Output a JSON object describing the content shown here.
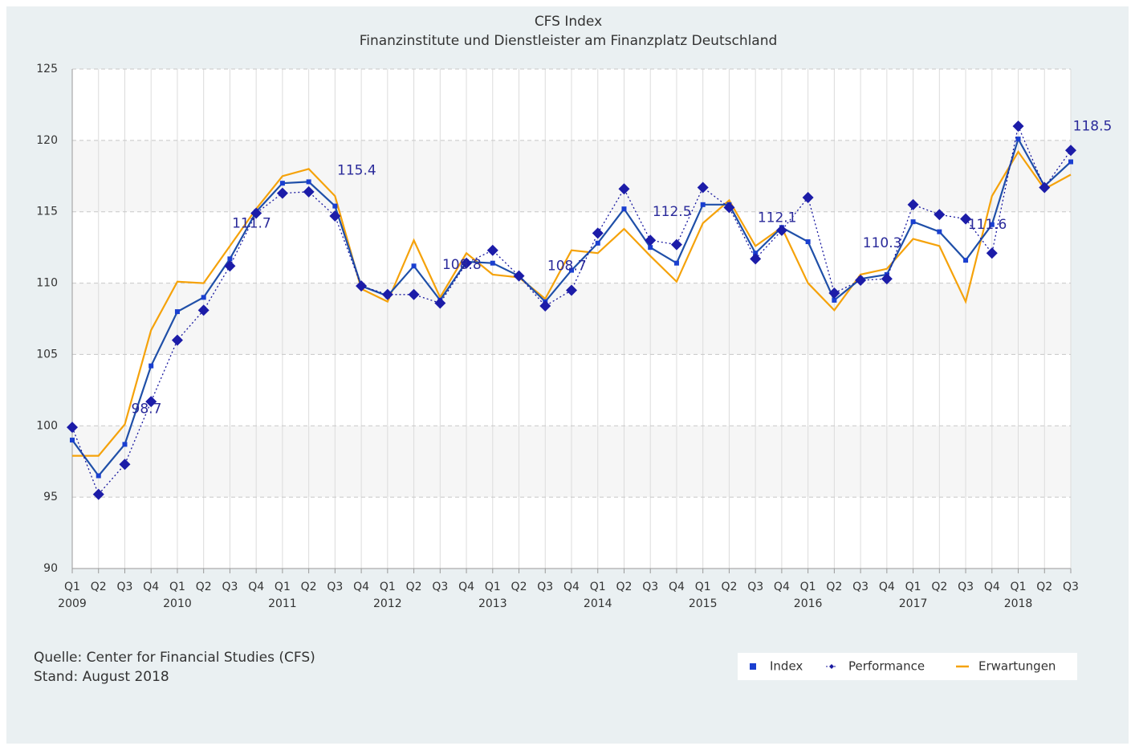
{
  "chart_data": {
    "type": "line",
    "title": "CFS Index",
    "subtitle": "Finanzinstitute und Dienstleister am Finanzplatz Deutschland",
    "categories": [
      "Q1",
      "Q2",
      "Q3",
      "Q4",
      "Q1",
      "Q2",
      "Q3",
      "Q4",
      "Q1",
      "Q2",
      "Q3",
      "Q4",
      "Q1",
      "Q2",
      "Q3",
      "Q4",
      "Q1",
      "Q2",
      "Q3",
      "Q4",
      "Q1",
      "Q2",
      "Q3",
      "Q4",
      "Q1",
      "Q2",
      "Q3",
      "Q4",
      "Q1",
      "Q2",
      "Q3",
      "Q4",
      "Q1",
      "Q2",
      "Q3",
      "Q4",
      "Q1",
      "Q2",
      "Q3"
    ],
    "year_labels": [
      "2009",
      "2010",
      "2011",
      "2012",
      "2013",
      "2014",
      "2015",
      "2016",
      "2017",
      "2018"
    ],
    "ylim": [
      90,
      125
    ],
    "yticks": [
      90,
      95,
      100,
      105,
      110,
      115,
      120,
      125
    ],
    "grid": true,
    "legend": "bottom-right",
    "series": [
      {
        "name": "Index",
        "color": "#1f4fa8",
        "marker": "square",
        "dash": "solid",
        "values": [
          99.0,
          96.5,
          98.7,
          104.2,
          108.0,
          109.0,
          111.7,
          115.0,
          117.0,
          117.1,
          115.4,
          109.8,
          109.1,
          111.2,
          108.8,
          111.5,
          111.4,
          110.5,
          108.7,
          110.9,
          112.8,
          115.2,
          112.5,
          111.4,
          115.5,
          115.5,
          112.1,
          113.9,
          112.9,
          108.8,
          110.3,
          110.6,
          114.3,
          113.6,
          111.6,
          114.1,
          120.1,
          116.8,
          118.5
        ],
        "value_labels": [
          null,
          null,
          "98.7",
          null,
          null,
          null,
          "111.7",
          null,
          null,
          null,
          "115.4",
          null,
          null,
          null,
          "108.8",
          null,
          null,
          null,
          "108.7",
          null,
          null,
          null,
          "112.5",
          null,
          null,
          null,
          "112.1",
          null,
          null,
          null,
          "110.3",
          null,
          null,
          null,
          "111.6",
          null,
          null,
          null,
          "118.5"
        ]
      },
      {
        "name": "Performance",
        "color": "#1a1aa0",
        "marker": "diamond",
        "dash": "dotted",
        "values": [
          99.9,
          95.2,
          97.3,
          101.7,
          106.0,
          108.1,
          111.2,
          114.9,
          116.3,
          116.4,
          114.7,
          109.8,
          109.2,
          109.2,
          108.6,
          111.4,
          112.3,
          110.5,
          108.4,
          109.5,
          113.5,
          116.6,
          113.0,
          112.7,
          116.7,
          115.3,
          111.7,
          113.7,
          116.0,
          109.3,
          110.2,
          110.3,
          115.5,
          114.8,
          114.5,
          112.1,
          121.0,
          116.7,
          119.3
        ]
      },
      {
        "name": "Erwartungen",
        "color": "#f5a20a",
        "marker": "none",
        "dash": "solid",
        "values": [
          97.9,
          97.9,
          100.1,
          106.7,
          110.1,
          110.0,
          112.6,
          115.2,
          117.5,
          118.0,
          116.1,
          109.6,
          108.7,
          113.0,
          109.0,
          112.1,
          110.6,
          110.4,
          108.9,
          112.3,
          112.1,
          113.8,
          111.9,
          110.1,
          114.2,
          115.8,
          112.6,
          113.9,
          110.0,
          108.1,
          110.6,
          111.0,
          113.1,
          112.6,
          108.7,
          116.1,
          119.2,
          116.6,
          117.6
        ]
      }
    ]
  },
  "footer": {
    "source": "Quelle: Center for Financial Studies (CFS)",
    "date": "Stand: August 2018"
  }
}
